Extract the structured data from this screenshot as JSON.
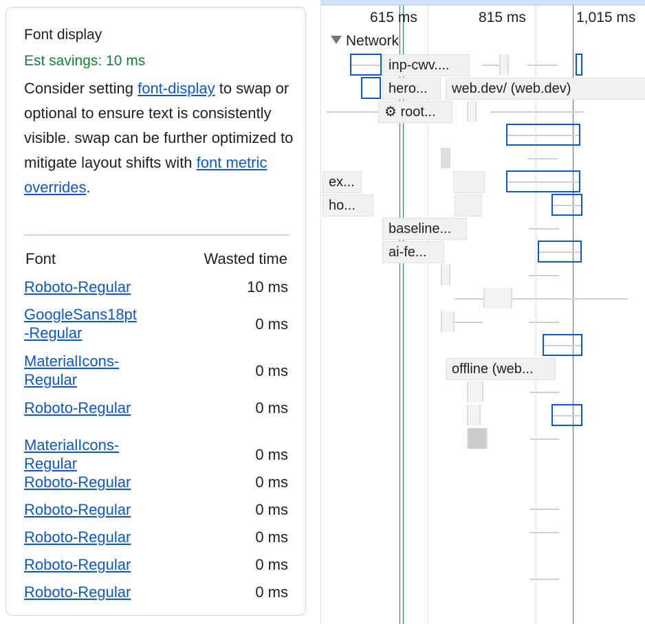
{
  "insight": {
    "title": "Font display",
    "savings": "Est savings: 10 ms",
    "desc_1": "Consider setting ",
    "link_font_display": "font-display",
    "desc_2": " to swap or optional to ensure text is consistently visible. swap can be further optimized to mitigate layout shifts with ",
    "link_metric_overrides": "font metric overrides",
    "desc_3": ".",
    "table": {
      "headers": [
        "Font",
        "Wasted time"
      ],
      "rows": [
        {
          "font": "Roboto-Regular",
          "wasted": "10 ms"
        },
        {
          "font": "GoogleSans18pt-Regular",
          "wasted": "0 ms"
        },
        {
          "font": "MaterialIcons-Regular",
          "wasted": "0 ms"
        },
        {
          "font": "Roboto-Regular",
          "wasted": "0 ms"
        },
        {
          "font": "MaterialIcons-Regular",
          "wasted": "0 ms"
        },
        {
          "font": "Roboto-Regular",
          "wasted": "0 ms"
        },
        {
          "font": "Roboto-Regular",
          "wasted": "0 ms"
        },
        {
          "font": "Roboto-Regular",
          "wasted": "0 ms"
        },
        {
          "font": "Roboto-Regular",
          "wasted": "0 ms"
        },
        {
          "font": "Roboto-Regular",
          "wasted": "0 ms"
        }
      ]
    }
  },
  "timeline": {
    "ticks": [
      "615 ms",
      "815 ms",
      "1,015 ms"
    ],
    "track": "Network",
    "requests": [
      "inp-cwv....",
      "hero...",
      "web.dev/ (web.dev)",
      "⚙ root...",
      "ex...",
      "ho...",
      "baseline...",
      "ai-fe...",
      "offline (web..."
    ],
    "colors": {
      "highlight": "#0b57d0",
      "marker": "#1e8e3e",
      "savings": "#188038"
    }
  }
}
